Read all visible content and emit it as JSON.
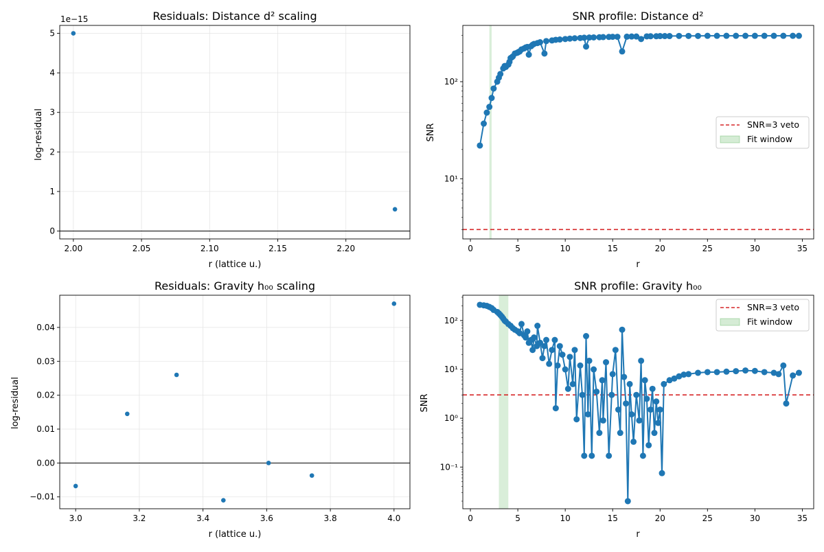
{
  "chart_data": [
    {
      "type": "scatter",
      "title": "Residuals: Distance d² scaling",
      "xlabel": "r (lattice u.)",
      "ylabel": "log-residual",
      "offset_text": "1e−15",
      "xlim": [
        1.99,
        2.247
      ],
      "ylim": [
        -0.2,
        5.2
      ],
      "yscale": "linear",
      "grid": true,
      "reference_line_y": 0,
      "x_ticks": [
        2.0,
        2.05,
        2.1,
        2.15,
        2.2
      ],
      "x_tick_labels": [
        "2.00",
        "2.05",
        "2.10",
        "2.15",
        "2.20"
      ],
      "y_ticks": [
        0,
        1,
        2,
        3,
        4,
        5
      ],
      "y_tick_labels": [
        "0",
        "1",
        "2",
        "3",
        "4",
        "5"
      ],
      "x": [
        2.0,
        2.236
      ],
      "y": [
        5.0,
        0.55
      ],
      "color": "#1f77b4"
    },
    {
      "type": "line",
      "title": "SNR profile: Distance d²",
      "xlabel": "r",
      "ylabel": "SNR",
      "xlim": [
        -0.8,
        36.2
      ],
      "ylim": [
        2.4,
        380
      ],
      "yscale": "log",
      "x_ticks": [
        0,
        5,
        10,
        15,
        20,
        25,
        30,
        35
      ],
      "x_tick_labels": [
        "0",
        "5",
        "10",
        "15",
        "20",
        "25",
        "30",
        "35"
      ],
      "y_ticks": [
        10,
        100
      ],
      "y_tick_labels": [
        "10¹",
        "10²"
      ],
      "veto_line": 3,
      "fit_window": [
        2.0,
        2.24
      ],
      "legend": {
        "position": "center-right",
        "entries": [
          "SNR=3 veto",
          "Fit window"
        ]
      },
      "x": [
        1.0,
        1.41,
        1.73,
        2.0,
        2.24,
        2.45,
        2.83,
        3.0,
        3.16,
        3.46,
        3.61,
        3.74,
        4.0,
        4.12,
        4.24,
        4.36,
        4.47,
        4.69,
        4.9,
        5.0,
        5.1,
        5.2,
        5.39,
        5.66,
        5.83,
        6.0,
        6.16,
        6.4,
        6.56,
        6.71,
        7.07,
        7.35,
        7.81,
        8.0,
        8.6,
        9.0,
        9.43,
        10.0,
        10.49,
        11.0,
        11.58,
        12.0,
        12.2,
        12.53,
        13.0,
        13.6,
        14.0,
        14.6,
        15.0,
        15.5,
        16.0,
        16.5,
        17.0,
        17.5,
        18.0,
        18.6,
        19.0,
        19.6,
        20.0,
        20.5,
        21.0,
        22.0,
        23.0,
        24.0,
        25.0,
        26.0,
        27.0,
        28.0,
        29.0,
        30.0,
        31.0,
        32.0,
        33.0,
        34.0,
        34.64
      ],
      "y": [
        22,
        37,
        48,
        55,
        68,
        85,
        100,
        110,
        120,
        137,
        145,
        142,
        150,
        160,
        175,
        178,
        182,
        195,
        198,
        200,
        203,
        205,
        215,
        220,
        225,
        228,
        190,
        232,
        240,
        245,
        250,
        255,
        195,
        262,
        266,
        270,
        272,
        275,
        278,
        280,
        282,
        284,
        230,
        285,
        286,
        287,
        288,
        289,
        290,
        290,
        205,
        291,
        292,
        292,
        275,
        293,
        294,
        294,
        295,
        295,
        295,
        296,
        296,
        296,
        297,
        297,
        297,
        297,
        297,
        297,
        297,
        297,
        297,
        297,
        297
      ],
      "color": "#1f77b4"
    },
    {
      "type": "scatter",
      "title": "Residuals: Gravity h₀₀ scaling",
      "xlabel": "r (lattice u.)",
      "ylabel": "log-residual",
      "xlim": [
        2.95,
        4.05
      ],
      "ylim": [
        -0.0135,
        0.0495
      ],
      "yscale": "linear",
      "grid": true,
      "reference_line_y": 0,
      "x_ticks": [
        3.0,
        3.2,
        3.4,
        3.6,
        3.8,
        4.0
      ],
      "x_tick_labels": [
        "3.0",
        "3.2",
        "3.4",
        "3.6",
        "3.8",
        "4.0"
      ],
      "y_ticks": [
        -0.01,
        0.0,
        0.01,
        0.02,
        0.03,
        0.04
      ],
      "y_tick_labels": [
        "−0.01",
        "0.00",
        "0.01",
        "0.02",
        "0.03",
        "0.04"
      ],
      "x": [
        3.0,
        3.162,
        3.317,
        3.464,
        3.606,
        3.742,
        4.0
      ],
      "y": [
        -0.0068,
        0.0145,
        0.026,
        -0.011,
        0.0,
        -0.0037,
        0.047
      ],
      "color": "#1f77b4"
    },
    {
      "type": "line",
      "title": "SNR profile: Gravity h₀₀",
      "xlabel": "r",
      "ylabel": "SNR",
      "xlim": [
        -0.8,
        36.2
      ],
      "ylim": [
        0.014,
        330
      ],
      "yscale": "log",
      "x_ticks": [
        0,
        5,
        10,
        15,
        20,
        25,
        30,
        35
      ],
      "x_tick_labels": [
        "0",
        "5",
        "10",
        "15",
        "20",
        "25",
        "30",
        "35"
      ],
      "y_ticks": [
        0.1,
        1,
        10,
        100
      ],
      "y_tick_labels": [
        "10⁻¹",
        "10⁰",
        "10¹",
        "10²"
      ],
      "veto_line": 3,
      "fit_window": [
        3.0,
        4.0
      ],
      "legend": {
        "position": "top-right",
        "entries": [
          "SNR=3 veto",
          "Fit window"
        ]
      },
      "x": [
        1.0,
        1.41,
        1.73,
        2.0,
        2.24,
        2.45,
        2.83,
        3.0,
        3.16,
        3.32,
        3.46,
        3.61,
        3.74,
        4.0,
        4.24,
        4.47,
        4.69,
        5.0,
        5.2,
        5.39,
        5.66,
        5.83,
        6.0,
        6.16,
        6.4,
        6.56,
        6.71,
        7.0,
        7.07,
        7.35,
        7.6,
        7.81,
        8.0,
        8.3,
        8.6,
        8.9,
        9.0,
        9.2,
        9.43,
        9.7,
        10.0,
        10.3,
        10.49,
        10.8,
        11.0,
        11.2,
        11.58,
        11.8,
        12.0,
        12.2,
        12.4,
        12.53,
        12.8,
        13.0,
        13.3,
        13.6,
        13.9,
        14.0,
        14.3,
        14.6,
        14.9,
        15.0,
        15.3,
        15.6,
        15.8,
        16.0,
        16.2,
        16.4,
        16.6,
        16.8,
        17.0,
        17.2,
        17.5,
        17.8,
        18.0,
        18.2,
        18.4,
        18.6,
        18.8,
        19.0,
        19.2,
        19.4,
        19.6,
        19.8,
        20.0,
        20.2,
        20.4,
        21.0,
        21.5,
        22.0,
        22.5,
        23.0,
        24.0,
        25.0,
        26.0,
        27.0,
        28.0,
        29.0,
        30.0,
        31.0,
        32.0,
        32.5,
        33.0,
        33.3,
        34.0,
        34.64
      ],
      "y": [
        210,
        205,
        200,
        190,
        180,
        165,
        150,
        140,
        130,
        120,
        110,
        100,
        95,
        85,
        78,
        70,
        65,
        60,
        55,
        85,
        50,
        45,
        60,
        35,
        40,
        25,
        45,
        30,
        78,
        35,
        17,
        30,
        40,
        13,
        25,
        40,
        1.6,
        12,
        30,
        20,
        10,
        4.0,
        18,
        5.0,
        25,
        0.95,
        12,
        3.0,
        0.17,
        48,
        1.2,
        15,
        0.17,
        10,
        3.5,
        0.5,
        6.0,
        0.9,
        14,
        0.17,
        3.0,
        8.0,
        25,
        1.5,
        0.5,
        65,
        7.0,
        2.0,
        0.02,
        5.0,
        1.2,
        0.33,
        3.0,
        0.9,
        15,
        0.17,
        6.0,
        2.5,
        0.28,
        1.5,
        4.0,
        0.5,
        2.2,
        0.8,
        1.5,
        0.075,
        5.0,
        6.0,
        6.5,
        7.2,
        7.8,
        8.0,
        8.5,
        8.8,
        8.8,
        9.0,
        9.2,
        9.5,
        9.3,
        8.8,
        8.5,
        8.0,
        12.0,
        2.0,
        7.5,
        8.5
      ],
      "color": "#1f77b4"
    }
  ]
}
